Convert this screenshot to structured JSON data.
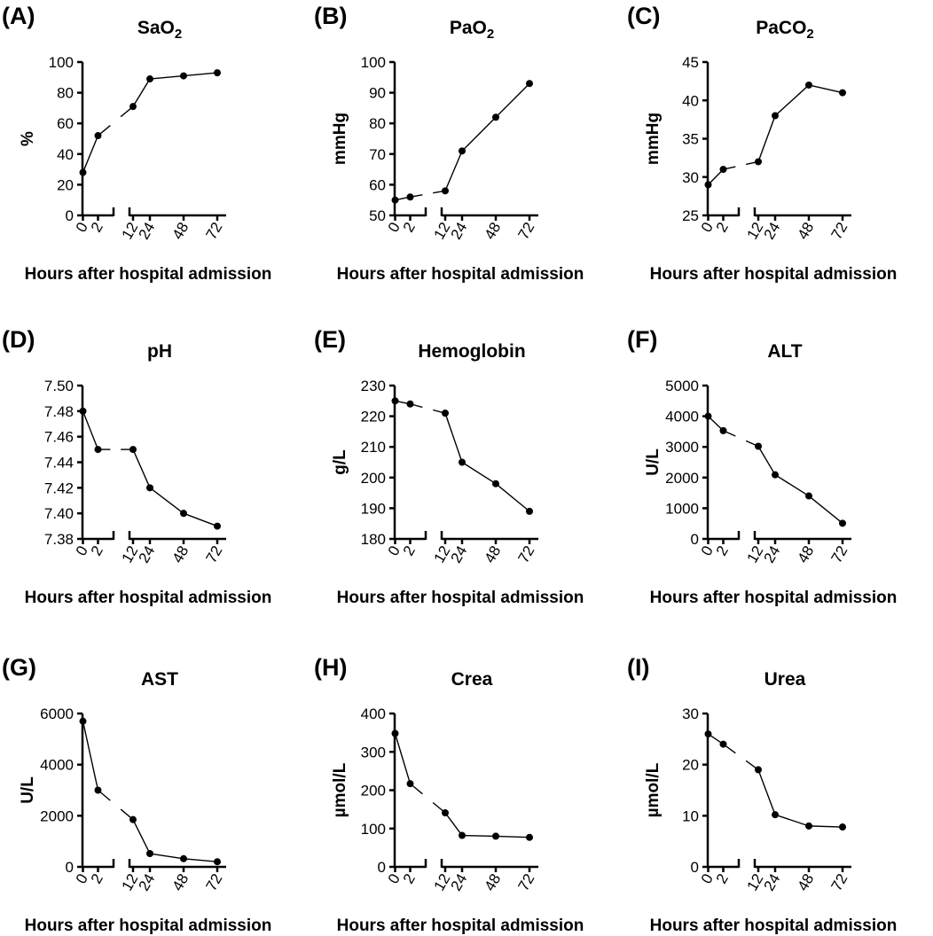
{
  "chart_data": [
    {
      "panel": "(A)",
      "type": "line",
      "title": "SaO",
      "title_sub": "2",
      "ylabel": "%",
      "xlabel": "Hours after hospital admission",
      "ylim": [
        0,
        100
      ],
      "yticks": [
        "0",
        "20",
        "40",
        "60",
        "80",
        "100"
      ],
      "xticks": [
        "0",
        "2",
        "12",
        "24",
        "48",
        "72"
      ],
      "x": [
        0,
        2,
        12,
        24,
        48,
        72
      ],
      "values": [
        28,
        52,
        71,
        89,
        91,
        93
      ]
    },
    {
      "panel": "(B)",
      "type": "line",
      "title": "PaO",
      "title_sub": "2",
      "ylabel": "mmHg",
      "xlabel": "Hours after hospital admission",
      "ylim": [
        50,
        100
      ],
      "yticks": [
        "50",
        "60",
        "70",
        "80",
        "90",
        "100"
      ],
      "xticks": [
        "0",
        "2",
        "12",
        "24",
        "48",
        "72"
      ],
      "x": [
        0,
        2,
        12,
        24,
        48,
        72
      ],
      "values": [
        55,
        56,
        58,
        71,
        82,
        93
      ]
    },
    {
      "panel": "(C)",
      "type": "line",
      "title": "PaCO",
      "title_sub": "2",
      "ylabel": "mmHg",
      "xlabel": "Hours after hospital admission",
      "ylim": [
        25,
        45
      ],
      "yticks": [
        "25",
        "30",
        "35",
        "40",
        "45"
      ],
      "xticks": [
        "0",
        "2",
        "12",
        "24",
        "48",
        "72"
      ],
      "x": [
        0,
        2,
        12,
        24,
        48,
        72
      ],
      "values": [
        29,
        31,
        32,
        38,
        42,
        41
      ]
    },
    {
      "panel": "(D)",
      "type": "line",
      "title": "pH",
      "title_sub": "",
      "ylabel": "",
      "xlabel": "Hours after hospital admission",
      "ylim": [
        7.38,
        7.5
      ],
      "yticks": [
        "7.38",
        "7.40",
        "7.42",
        "7.44",
        "7.46",
        "7.48",
        "7.50"
      ],
      "xticks": [
        "0",
        "2",
        "12",
        "24",
        "48",
        "72"
      ],
      "x": [
        0,
        2,
        12,
        24,
        48,
        72
      ],
      "values": [
        7.48,
        7.45,
        7.45,
        7.42,
        7.4,
        7.39
      ]
    },
    {
      "panel": "(E)",
      "type": "line",
      "title": "Hemoglobin",
      "title_sub": "",
      "ylabel": "g/L",
      "xlabel": "Hours after hospital admission",
      "ylim": [
        180,
        230
      ],
      "yticks": [
        "180",
        "190",
        "200",
        "210",
        "220",
        "230"
      ],
      "xticks": [
        "0",
        "2",
        "12",
        "24",
        "48",
        "72"
      ],
      "x": [
        0,
        2,
        12,
        24,
        48,
        72
      ],
      "values": [
        225,
        224,
        221,
        205,
        198,
        189
      ]
    },
    {
      "panel": "(F)",
      "type": "line",
      "title": "ALT",
      "title_sub": "",
      "ylabel": "U/L",
      "xlabel": "Hours after hospital admission",
      "ylim": [
        0,
        5000
      ],
      "yticks": [
        "0",
        "1000",
        "2000",
        "3000",
        "4000",
        "5000"
      ],
      "xticks": [
        "0",
        "2",
        "12",
        "24",
        "48",
        "72"
      ],
      "x": [
        0,
        2,
        12,
        24,
        48,
        72
      ],
      "values": [
        4000,
        3530,
        3020,
        2090,
        1400,
        510
      ]
    },
    {
      "panel": "(G)",
      "type": "line",
      "title": "AST",
      "title_sub": "",
      "ylabel": "U/L",
      "xlabel": "Hours after hospital admission",
      "ylim": [
        0,
        6000
      ],
      "yticks": [
        "0",
        "2000",
        "4000",
        "6000"
      ],
      "xticks": [
        "0",
        "2",
        "12",
        "24",
        "48",
        "72"
      ],
      "x": [
        0,
        2,
        12,
        24,
        48,
        72
      ],
      "values": [
        5700,
        3000,
        1850,
        520,
        320,
        200
      ]
    },
    {
      "panel": "(H)",
      "type": "line",
      "title": "Crea",
      "title_sub": "",
      "ylabel": "µmol/L",
      "xlabel": "Hours after hospital admission",
      "ylim": [
        0,
        400
      ],
      "yticks": [
        "0",
        "100",
        "200",
        "300",
        "400"
      ],
      "xticks": [
        "0",
        "2",
        "12",
        "24",
        "48",
        "72"
      ],
      "x": [
        0,
        2,
        12,
        24,
        48,
        72
      ],
      "values": [
        348,
        217,
        141,
        82,
        80,
        77
      ]
    },
    {
      "panel": "(I)",
      "type": "line",
      "title": "Urea",
      "title_sub": "",
      "ylabel": "µmol/L",
      "xlabel": "Hours after hospital admission",
      "ylim": [
        0,
        30
      ],
      "yticks": [
        "0",
        "10",
        "20",
        "30"
      ],
      "xticks": [
        "0",
        "2",
        "12",
        "24",
        "48",
        "72"
      ],
      "x": [
        0,
        2,
        12,
        24,
        48,
        72
      ],
      "values": [
        26,
        24,
        19,
        10.2,
        8,
        7.8
      ]
    }
  ]
}
